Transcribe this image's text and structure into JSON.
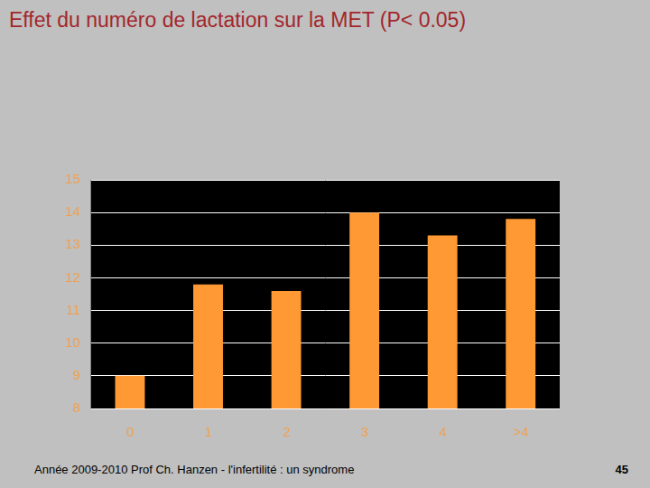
{
  "chart_data": {
    "type": "bar",
    "title": "Effet du numéro de lactation sur la MET (P< 0.05)",
    "categories": [
      "0",
      "1",
      "2",
      "3",
      "4",
      ">4"
    ],
    "values": [
      9.0,
      11.8,
      11.6,
      14.0,
      13.3,
      13.8
    ],
    "color": "#ff9933",
    "ylim": [
      8,
      15
    ],
    "yticks": [
      8,
      9,
      10,
      11,
      12,
      13,
      14,
      15
    ],
    "grid": true
  },
  "footer": {
    "text": "Année 2009-2010 Prof Ch. Hanzen - l'infertilité : un syndrome",
    "page": "45"
  }
}
